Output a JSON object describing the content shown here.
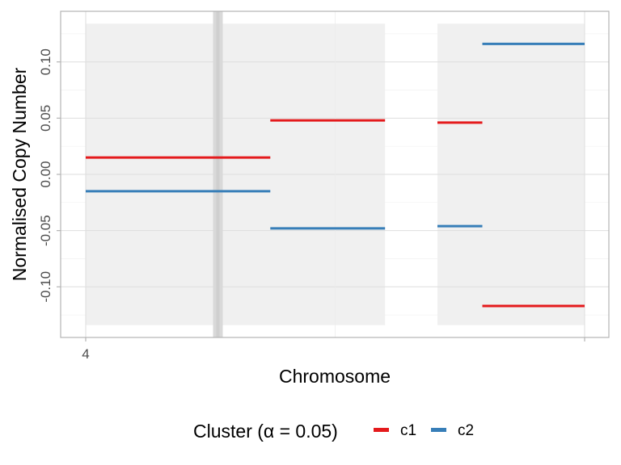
{
  "chart_data": {
    "type": "line",
    "xlabel": "Chromosome",
    "ylabel": "Normalised Copy Number",
    "x_ticks": [
      "4",
      ""
    ],
    "x_range": [
      0,
      1
    ],
    "y_range": [
      -0.145,
      0.145
    ],
    "y_ticks": [
      0.1,
      0.05,
      0.0,
      -0.05,
      -0.1
    ],
    "y_tick_labels": [
      "0.10",
      "0.05",
      "0.00",
      "-0.05",
      "-0.10"
    ],
    "grid": true,
    "legend": {
      "title": "Cluster (α = 0.05)",
      "position": "bottom",
      "entries": [
        {
          "name": "c1",
          "color": "#e41a1c"
        },
        {
          "name": "c2",
          "color": "#377eb8"
        }
      ]
    },
    "shaded_regions": [
      {
        "x0": 0.0,
        "x1": 1.2,
        "y0": -0.134,
        "y1": 0.134
      },
      {
        "x0": 1.41,
        "x1": 2.0,
        "y0": -0.134,
        "y1": 0.134
      }
    ],
    "marker_band": {
      "x": 0.53
    },
    "series": [
      {
        "name": "c1",
        "color": "#e41a1c",
        "segments": [
          {
            "x0": 0.0,
            "x1": 0.74,
            "y": 0.015
          },
          {
            "x0": 0.74,
            "x1": 1.2,
            "y": 0.048
          },
          {
            "x0": 1.41,
            "x1": 1.59,
            "y": 0.046
          },
          {
            "x0": 1.59,
            "x1": 2.0,
            "y": -0.117
          }
        ]
      },
      {
        "name": "c2",
        "color": "#377eb8",
        "segments": [
          {
            "x0": 0.0,
            "x1": 0.74,
            "y": -0.015
          },
          {
            "x0": 0.74,
            "x1": 1.2,
            "y": -0.048
          },
          {
            "x0": 1.41,
            "x1": 1.59,
            "y": -0.046
          },
          {
            "x0": 1.59,
            "x1": 2.0,
            "y": 0.116
          }
        ]
      }
    ]
  }
}
